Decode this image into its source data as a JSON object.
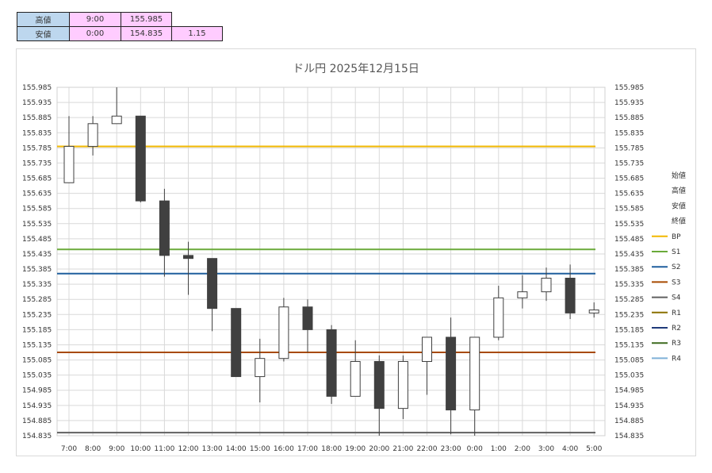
{
  "summary": {
    "high": {
      "label": "高値",
      "time": "9:00",
      "price": "155.985"
    },
    "low": {
      "label": "安値",
      "time": "0:00",
      "price": "154.835",
      "range": "1.15"
    }
  },
  "chart_data": {
    "type": "candlestick",
    "title": "ドル円  2025年12月15日",
    "ylim": [
      154.835,
      155.985
    ],
    "ytick_step": 0.05,
    "yticks": [
      "155.985",
      "155.935",
      "155.885",
      "155.835",
      "155.785",
      "155.735",
      "155.685",
      "155.635",
      "155.585",
      "155.535",
      "155.485",
      "155.435",
      "155.385",
      "155.335",
      "155.285",
      "155.235",
      "155.185",
      "155.135",
      "155.085",
      "155.035",
      "154.985",
      "154.935",
      "154.885",
      "154.835"
    ],
    "categories": [
      "7:00",
      "8:00",
      "9:00",
      "10:00",
      "11:00",
      "12:00",
      "13:00",
      "14:00",
      "15:00",
      "16:00",
      "17:00",
      "18:00",
      "19:00",
      "20:00",
      "21:00",
      "22:00",
      "23:00",
      "0:00",
      "1:00",
      "2:00",
      "3:00",
      "4:00",
      "5:00"
    ],
    "candles": [
      {
        "o": 155.67,
        "h": 155.89,
        "l": 155.67,
        "c": 155.79
      },
      {
        "o": 155.79,
        "h": 155.89,
        "l": 155.76,
        "c": 155.865
      },
      {
        "o": 155.865,
        "h": 155.985,
        "l": 155.865,
        "c": 155.89
      },
      {
        "o": 155.89,
        "h": 155.89,
        "l": 155.605,
        "c": 155.61
      },
      {
        "o": 155.61,
        "h": 155.65,
        "l": 155.36,
        "c": 155.43
      },
      {
        "o": 155.43,
        "h": 155.475,
        "l": 155.3,
        "c": 155.42
      },
      {
        "o": 155.42,
        "h": 155.42,
        "l": 155.18,
        "c": 155.255
      },
      {
        "o": 155.255,
        "h": 155.255,
        "l": 155.03,
        "c": 155.03
      },
      {
        "o": 155.03,
        "h": 155.155,
        "l": 154.945,
        "c": 155.09
      },
      {
        "o": 155.09,
        "h": 155.29,
        "l": 155.08,
        "c": 155.26
      },
      {
        "o": 155.26,
        "h": 155.285,
        "l": 155.11,
        "c": 155.185
      },
      {
        "o": 155.185,
        "h": 155.2,
        "l": 154.94,
        "c": 154.965
      },
      {
        "o": 154.965,
        "h": 155.15,
        "l": 154.965,
        "c": 155.08
      },
      {
        "o": 155.08,
        "h": 155.1,
        "l": 154.835,
        "c": 154.925
      },
      {
        "o": 154.925,
        "h": 155.1,
        "l": 154.89,
        "c": 155.08
      },
      {
        "o": 155.08,
        "h": 155.16,
        "l": 154.97,
        "c": 155.16
      },
      {
        "o": 155.16,
        "h": 155.225,
        "l": 154.84,
        "c": 154.92
      },
      {
        "o": 154.92,
        "h": 155.16,
        "l": 154.835,
        "c": 155.16
      },
      {
        "o": 155.16,
        "h": 155.33,
        "l": 155.15,
        "c": 155.29
      },
      {
        "o": 155.29,
        "h": 155.365,
        "l": 155.255,
        "c": 155.31
      },
      {
        "o": 155.31,
        "h": 155.39,
        "l": 155.28,
        "c": 155.355
      },
      {
        "o": 155.355,
        "h": 155.4,
        "l": 155.22,
        "c": 155.24
      },
      {
        "o": 155.24,
        "h": 155.275,
        "l": 155.225,
        "c": 155.25
      }
    ],
    "levels": [
      {
        "name": "BP",
        "value": 155.79,
        "color": "#f2b800"
      },
      {
        "name": "S1",
        "value": 155.45,
        "color": "#6aaa3a"
      },
      {
        "name": "S2",
        "value": 155.37,
        "color": "#1f5f9e"
      },
      {
        "name": "S3",
        "value": 155.11,
        "color": "#a84a00"
      },
      {
        "name": "S4",
        "value": 154.845,
        "color": "#606060"
      }
    ],
    "legend": [
      {
        "name": "始値",
        "color": ""
      },
      {
        "name": "高値",
        "color": ""
      },
      {
        "name": "安値",
        "color": ""
      },
      {
        "name": "終値",
        "color": ""
      },
      {
        "name": "BP",
        "color": "#f2b800"
      },
      {
        "name": "S1",
        "color": "#6aaa3a"
      },
      {
        "name": "S2",
        "color": "#1f5f9e"
      },
      {
        "name": "S3",
        "color": "#a84a00"
      },
      {
        "name": "S4",
        "color": "#606060"
      },
      {
        "name": "R1",
        "color": "#8a7000"
      },
      {
        "name": "R2",
        "color": "#1f3a7a"
      },
      {
        "name": "R3",
        "color": "#3d6a1f"
      },
      {
        "name": "R4",
        "color": "#7fb0d8"
      }
    ],
    "legend_position": "right",
    "grid": true,
    "up_color": "#ffffff",
    "down_color": "#404040"
  }
}
